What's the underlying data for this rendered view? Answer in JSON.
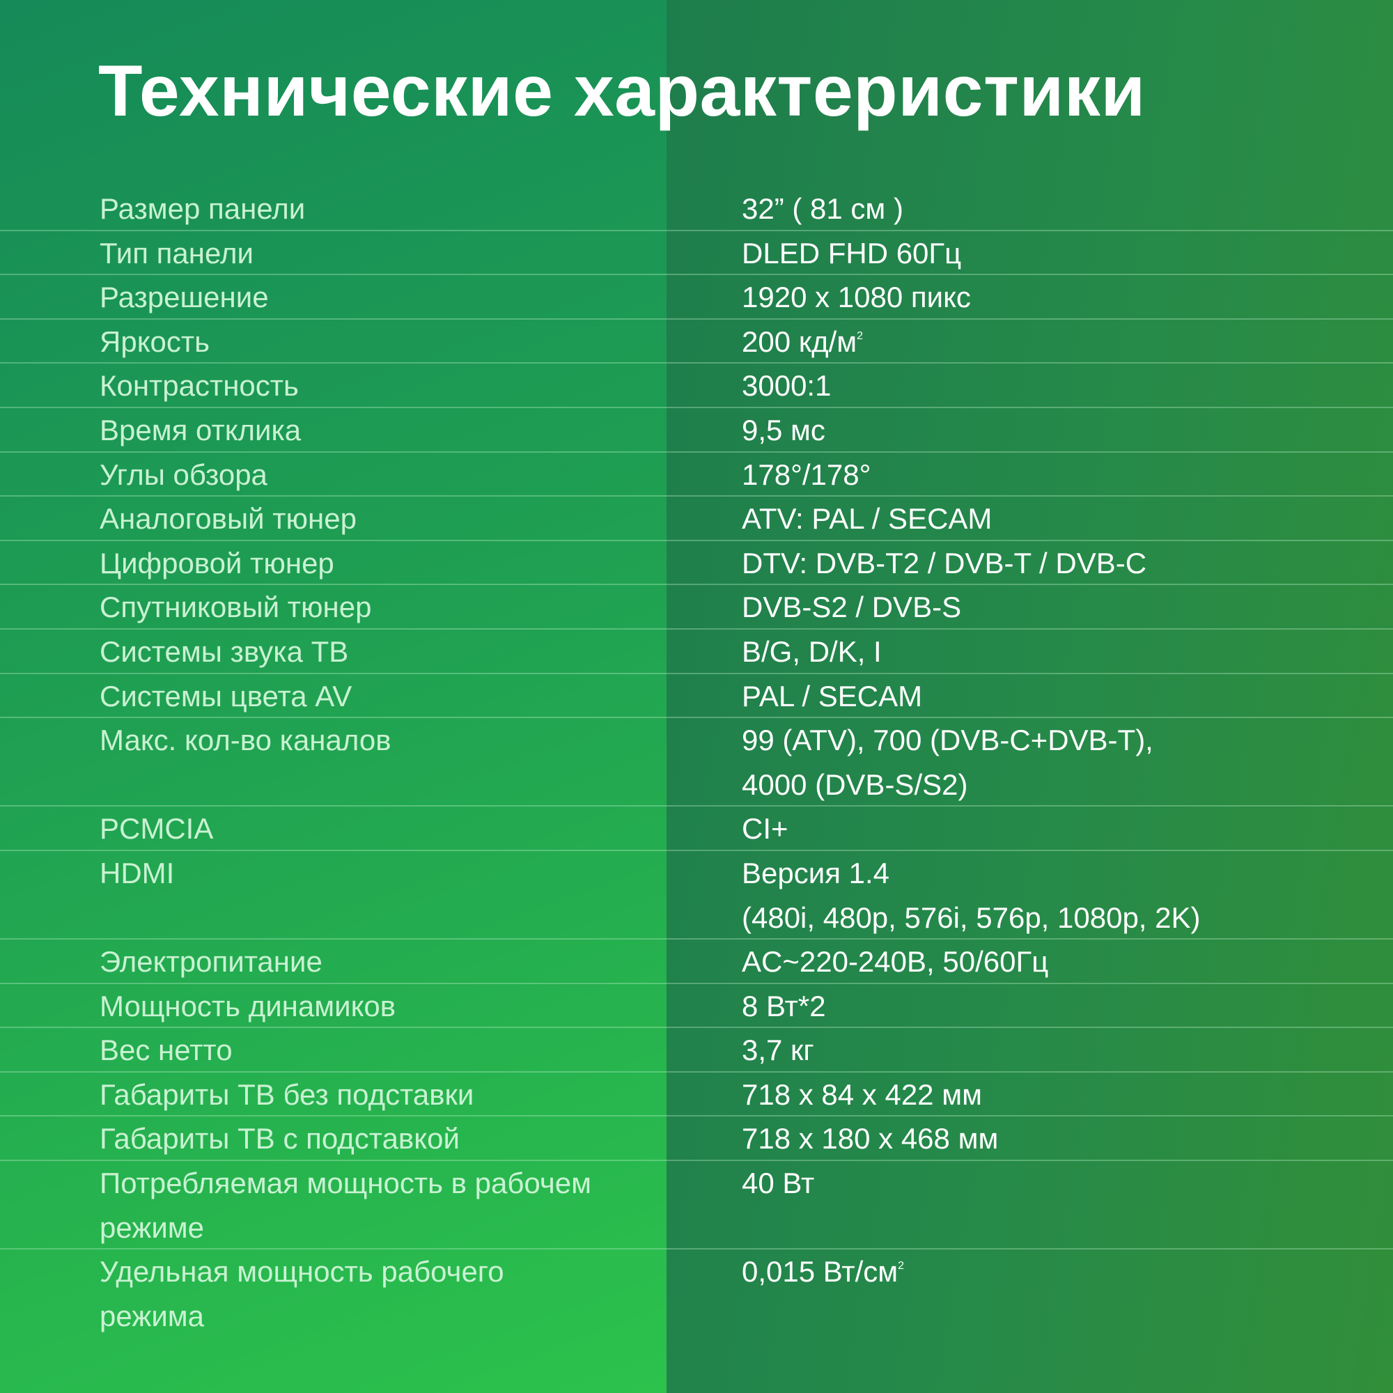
{
  "title": "Технические характеристики",
  "colors": {
    "left_panel": "#1f9f52",
    "right_panel": "#25894a",
    "label": "#c9f2d2",
    "value": "#ffffff"
  },
  "specs": [
    {
      "label": "Размер панели",
      "value": "32” ( 81 см )"
    },
    {
      "label": "Тип панели",
      "value": "DLED FHD 60Гц"
    },
    {
      "label": "Разрешение",
      "value": "1920 х 1080 пикс"
    },
    {
      "label": "Яркость",
      "value": "200 кд/м",
      "sup": "2"
    },
    {
      "label": "Контрастность",
      "value": "3000:1"
    },
    {
      "label": "Время отклика",
      "value": "9,5 мс"
    },
    {
      "label": "Углы обзора",
      "value": "178°/178°"
    },
    {
      "label": "Аналоговый тюнер",
      "value": "ATV: PAL / SECAM"
    },
    {
      "label": "Цифровой тюнер",
      "value": "DTV: DVB-T2 / DVB-T / DVB-C"
    },
    {
      "label": "Спутниковый тюнер",
      "value": "DVB-S2 / DVB-S"
    },
    {
      "label": "Системы звука ТВ",
      "value": "B/G, D/K, I"
    },
    {
      "label": "Системы цвета AV",
      "value": "PAL / SECAM"
    },
    {
      "label": "Макс. кол-во каналов",
      "value": "99 (ATV), 700 (DVB-C+DVB-T),",
      "value2": "4000 (DVB-S/S2)"
    },
    {
      "label": "PCMCIA",
      "value": "CI+"
    },
    {
      "label": "HDMI",
      "value": "Версия 1.4",
      "value2": "(480i, 480p, 576i, 576p, 1080p, 2K)"
    },
    {
      "label": "Электропитание",
      "value": "AC~220-240В, 50/60Гц"
    },
    {
      "label": "Мощность динамиков",
      "value": "8 Вт*2"
    },
    {
      "label": "Вес нетто",
      "value": "3,7 кг"
    },
    {
      "label": "Габариты ТВ без подставки",
      "value": "718 х 84 х 422 мм"
    },
    {
      "label": "Габариты ТВ с подставкой",
      "value": "718 х 180 х 468 мм"
    },
    {
      "label": "Потребляемая мощность в рабочем",
      "label2": "режиме",
      "value": "40 Вт"
    },
    {
      "label": "Удельная мощность рабочего",
      "label2": "режима",
      "value": "0,015 Вт/см",
      "sup": "2"
    }
  ]
}
